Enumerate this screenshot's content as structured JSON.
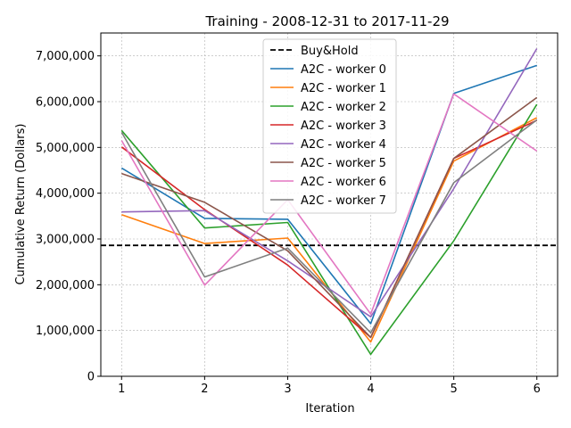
{
  "chart_data": {
    "type": "line",
    "title": "Training - 2008-12-31 to 2017-11-29",
    "xlabel": "Iteration",
    "ylabel": "Cumulative Return (Dollars)",
    "x": [
      1,
      2,
      3,
      4,
      5,
      6
    ],
    "x_ticks": [
      "1",
      "2",
      "3",
      "4",
      "5",
      "6"
    ],
    "y_ticks": [
      "0",
      "1,000,000",
      "2,000,000",
      "3,000,000",
      "4,000,000",
      "5,000,000",
      "6,000,000",
      "7,000,000"
    ],
    "y_tick_values": [
      0,
      1000000,
      2000000,
      3000000,
      4000000,
      5000000,
      6000000,
      7000000
    ],
    "xlim": [
      0.75,
      6.25
    ],
    "ylim": [
      0,
      7500000
    ],
    "grid": true,
    "legend_position": "top-center",
    "baseline": {
      "name": "Buy&Hold",
      "value": 2860000,
      "color": "#000000",
      "style": "dashed"
    },
    "series": [
      {
        "name": "A2C - worker 0",
        "color": "#1f77b4",
        "values": [
          4550000,
          3450000,
          3430000,
          1150000,
          6180000,
          6790000
        ]
      },
      {
        "name": "A2C - worker 1",
        "color": "#ff7f0e",
        "values": [
          3530000,
          2900000,
          3020000,
          750000,
          4700000,
          5650000
        ]
      },
      {
        "name": "A2C - worker 2",
        "color": "#2ca02c",
        "values": [
          5370000,
          3240000,
          3360000,
          480000,
          2960000,
          5940000
        ]
      },
      {
        "name": "A2C - worker 3",
        "color": "#d62728",
        "values": [
          5010000,
          3640000,
          2430000,
          850000,
          4760000,
          5590000
        ]
      },
      {
        "name": "A2C - worker 4",
        "color": "#9467bd",
        "values": [
          3590000,
          3620000,
          2520000,
          1300000,
          4100000,
          7160000
        ]
      },
      {
        "name": "A2C - worker 5",
        "color": "#8c564b",
        "values": [
          4430000,
          3800000,
          2740000,
          850000,
          4760000,
          6090000
        ]
      },
      {
        "name": "A2C - worker 6",
        "color": "#e377c2",
        "values": [
          5150000,
          1990000,
          3860000,
          1360000,
          6170000,
          4920000
        ]
      },
      {
        "name": "A2C - worker 7",
        "color": "#7f7f7f",
        "values": [
          5330000,
          2170000,
          2800000,
          950000,
          4230000,
          5600000
        ]
      }
    ]
  }
}
